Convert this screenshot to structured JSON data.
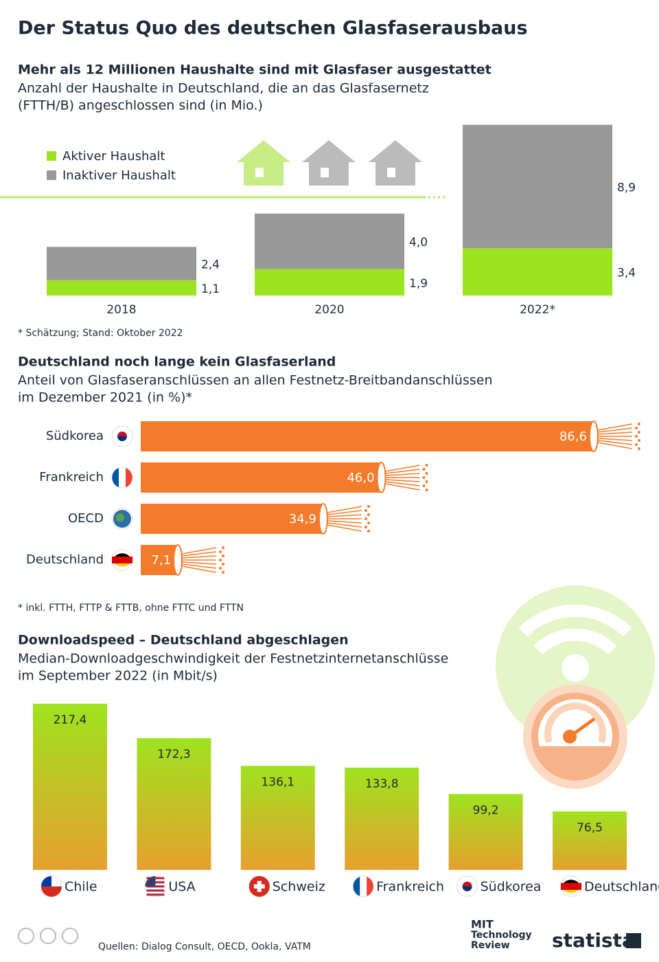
{
  "title": "Der Status Quo des deutschen Glasfaserausbaus",
  "chart_data": [
    {
      "type": "stacked_bar",
      "title": "Mehr als 12 Millionen Haushalte sind mit Glasfaser ausgestattet",
      "subtitle": [
        "Anzahl der Haushalte in Deutschland, die an das Glasfasernetz",
        "(FTTH/B) angeschlossen sind (in Mio.)"
      ],
      "categories": [
        "2018",
        "2020",
        "2022*"
      ],
      "series": [
        {
          "name": "Aktiver Haushalt",
          "color": "#9de420",
          "values": [
            1.1,
            1.9,
            3.4
          ],
          "value_labels": [
            "1,1",
            "1,9",
            "3,4"
          ]
        },
        {
          "name": "Inaktiver Haushalt",
          "color": "#999999",
          "values": [
            2.4,
            4.0,
            8.9
          ],
          "value_labels": [
            "2,4",
            "4,0",
            "8,9"
          ]
        }
      ],
      "note": "* Schätzung; Stand: Oktober 2022"
    },
    {
      "type": "hbar",
      "title": "Deutschland noch lange kein Glasfaserland",
      "subtitle": [
        "Anteil von Glasfaseranschlüssen an allen Festnetz-Breitbandanschlüssen",
        "im Dezember 2021 (in %)*"
      ],
      "categories": [
        "Südkorea",
        "Frankreich",
        "OECD",
        "Deutschland"
      ],
      "values": [
        86.6,
        46.0,
        34.9,
        7.1
      ],
      "value_labels": [
        "86,6",
        "46,0",
        "34,9",
        "7,1"
      ],
      "color": "#f47b2b",
      "note": "* inkl. FTTH, FTTP & FTTB, ohne FTTC und FTTN"
    },
    {
      "type": "bar",
      "title": "Downloadspeed – Deutschland abgeschlagen",
      "subtitle": [
        "Median-Downloadgeschwindigkeit der Festnetzinternetanschlüsse",
        "im September 2022 (in Mbit/s)"
      ],
      "categories": [
        "Chile",
        "USA",
        "Schweiz",
        "Frankreich",
        "Südkorea",
        "Deutschland"
      ],
      "values": [
        217.4,
        172.3,
        136.1,
        133.8,
        99.2,
        76.5
      ],
      "value_labels": [
        "217,4",
        "172,3",
        "136,1",
        "133,8",
        "99,2",
        "76,5"
      ],
      "gradient": [
        "#9fe31f",
        "#e6a02f"
      ]
    }
  ],
  "source": "Quellen: Dialog Consult, OECD, Ookla, VATM",
  "logos": [
    "MIT",
    "Technology",
    "Review",
    "statista"
  ]
}
